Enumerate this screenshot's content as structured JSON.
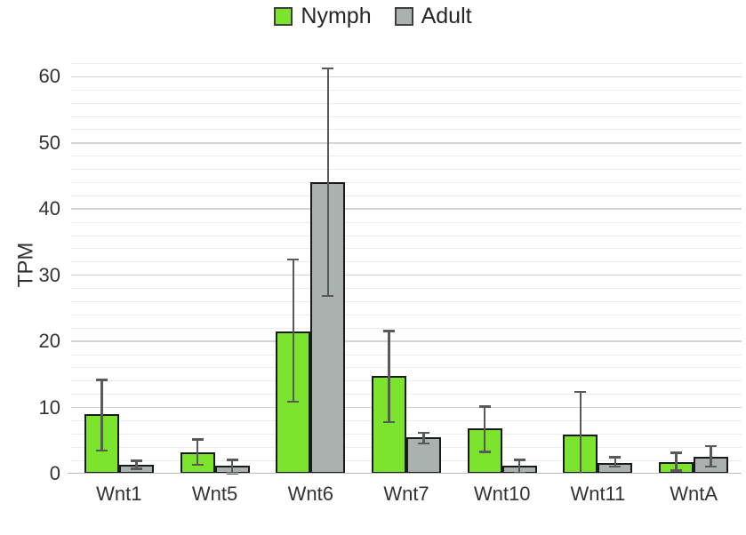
{
  "colors": {
    "nymph_green": "#7ce42c",
    "adult_gray": "#a9b2af",
    "bar_border": "#1a1a1a",
    "error_bar": "#595959",
    "grid_major": "#d4d4d4",
    "grid_minor": "#ededed",
    "axis_line": "#bdbdbd",
    "text": "#333333"
  },
  "chart_data": {
    "type": "bar",
    "title": "",
    "ylabel": "TPM",
    "xlabel": "",
    "categories": [
      "Wnt1",
      "Wnt5",
      "Wnt6",
      "Wnt7",
      "Wnt10",
      "Wnt11",
      "WntA"
    ],
    "ylim": [
      0,
      63
    ],
    "yticks": [
      0,
      10,
      20,
      30,
      40,
      50,
      60
    ],
    "minor_grid_step": 2,
    "grid": true,
    "legend_position": "top-center",
    "series": [
      {
        "name": "Nymph",
        "color": "#7ce42c",
        "values": [
          9.0,
          3.2,
          21.5,
          14.8,
          6.8,
          5.9,
          1.8
        ],
        "error_low": [
          3.5,
          1.4,
          10.9,
          7.8,
          3.3,
          0.0,
          0.5
        ],
        "error_high": [
          14.2,
          5.2,
          32.4,
          21.6,
          10.2,
          12.4,
          3.2
        ]
      },
      {
        "name": "Adult",
        "color": "#a9b2af",
        "values": [
          1.4,
          1.2,
          44.0,
          5.5,
          1.2,
          1.6,
          2.5
        ],
        "error_low": [
          0.8,
          0.1,
          26.9,
          4.6,
          0.2,
          1.1,
          1.1
        ],
        "error_high": [
          2.0,
          2.1,
          61.3,
          6.2,
          2.1,
          2.5,
          4.2
        ]
      }
    ]
  }
}
